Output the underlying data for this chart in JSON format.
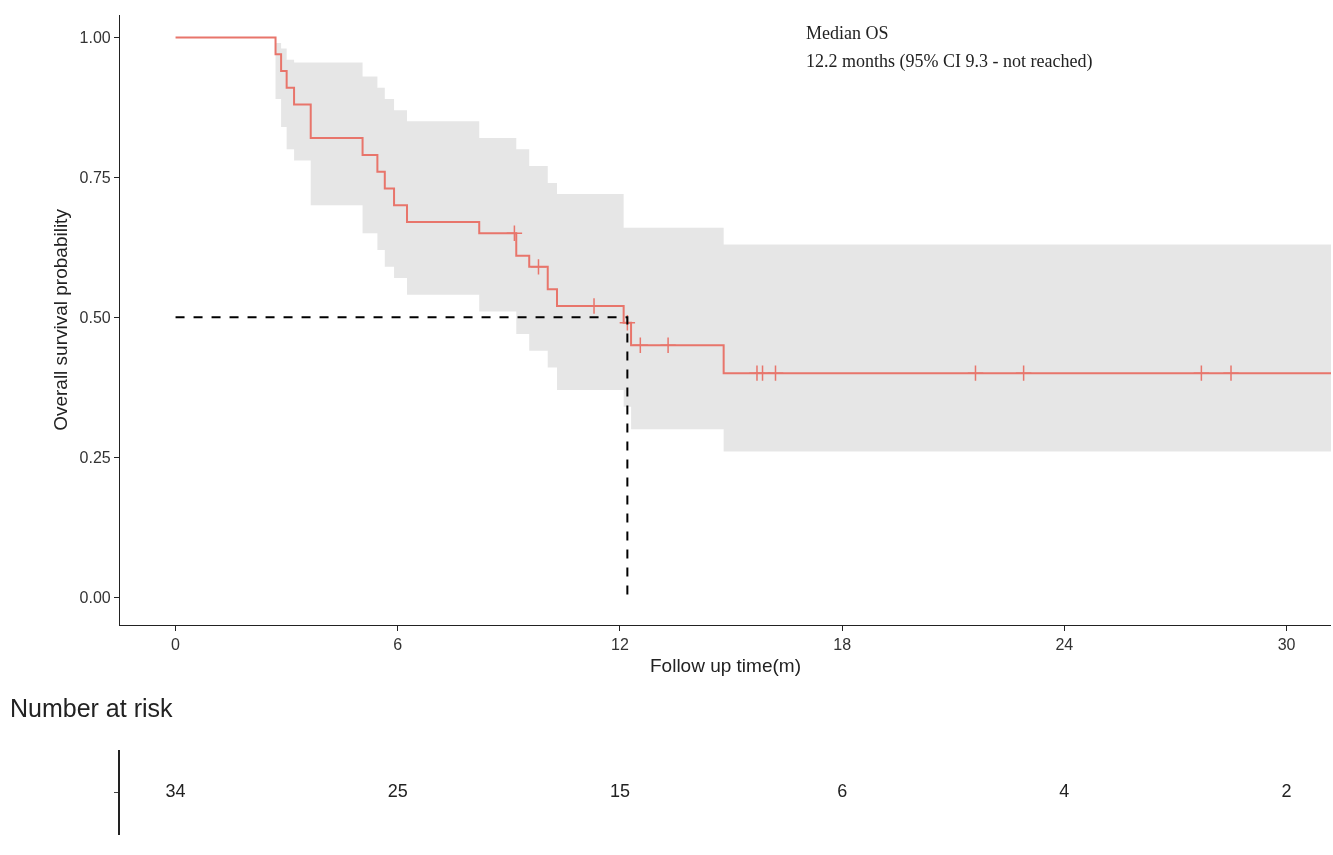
{
  "chart_data": [
    {
      "type": "step",
      "xlabel": "Follow up time(m)",
      "ylabel": "Overall survival probability",
      "annotations": [
        "Median OS",
        "12.2 months (95% CI 9.3 - not reached)"
      ],
      "x": [
        0,
        2.7,
        2.85,
        3.0,
        3.2,
        3.65,
        5.05,
        5.45,
        5.65,
        5.9,
        6.25,
        8.2,
        9.2,
        9.55,
        10.05,
        10.3,
        12.1,
        12.3,
        14.8,
        31.2
      ],
      "series": [
        {
          "color": "#e8756b",
          "values": [
            1,
            0.97,
            0.94,
            0.91,
            0.88,
            0.82,
            0.79,
            0.76,
            0.73,
            0.7,
            0.67,
            0.65,
            0.61,
            0.59,
            0.55,
            0.52,
            0.49,
            0.45,
            0.4,
            0.4
          ],
          "lower": [
            1,
            0.89,
            0.84,
            0.8,
            0.78,
            0.7,
            0.65,
            0.62,
            0.59,
            0.57,
            0.54,
            0.51,
            0.47,
            0.44,
            0.41,
            0.37,
            0.34,
            0.3,
            0.26,
            0.26
          ],
          "upper": [
            1,
            0.99,
            0.98,
            0.96,
            0.955,
            0.955,
            0.93,
            0.91,
            0.89,
            0.87,
            0.85,
            0.82,
            0.8,
            0.77,
            0.74,
            0.72,
            0.66,
            0.66,
            0.63,
            0.63
          ]
        },
        {
          "type": "scatter",
          "marker": "cross",
          "color": "#e8756b",
          "x": [
            9.15,
            9.8,
            11.3,
            12.2,
            12.55,
            13.3,
            15.7,
            15.85,
            16.2,
            21.6,
            22.9,
            27.7,
            28.5
          ],
          "values": [
            0.65,
            0.59,
            0.52,
            0.49,
            0.45,
            0.45,
            0.4,
            0.4,
            0.4,
            0.4,
            0.4,
            0.4,
            0.4
          ]
        },
        {
          "type": "line",
          "line_style": "dashed",
          "color": "#000000",
          "x": [
            0,
            12.2,
            12.2
          ],
          "values": [
            0.5,
            0.5,
            0
          ]
        }
      ],
      "xlim": [
        -1.5,
        31.2
      ],
      "xticks": [
        0,
        6,
        12,
        18,
        24,
        30
      ],
      "ylim": [
        -0.05,
        1.04
      ],
      "yticks": [
        {
          "value": 0,
          "label": "0.00"
        },
        {
          "value": 0.25,
          "label": "0.25"
        },
        {
          "value": 0.5,
          "label": "0.50"
        },
        {
          "value": 0.75,
          "label": "0.75"
        },
        {
          "value": 1,
          "label": "1.00"
        }
      ],
      "grid": false
    },
    {
      "type": "other",
      "title": "Number at risk",
      "categories": [
        null,
        null,
        null,
        null,
        null,
        null
      ],
      "values": [
        34,
        25,
        15,
        6,
        4,
        2
      ],
      "data_labels": true
    }
  ]
}
